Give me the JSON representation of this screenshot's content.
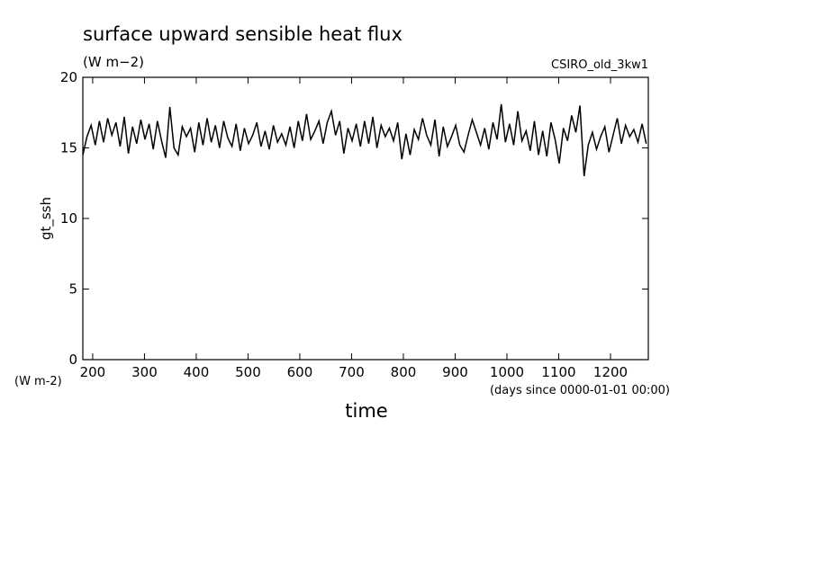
{
  "chart_data": {
    "type": "line",
    "title": "surface upward sensible heat flux",
    "subtitle": "(W m−2)",
    "annotation": "CSIRO_old_3kw1",
    "y_label": "gt_ssh",
    "y_units": "(W m-2)",
    "x_label": "time",
    "x_units": "(days since 0000-01-01 00:00)",
    "xlim": [
      181,
      1273
    ],
    "ylim": [
      0,
      20
    ],
    "xticks": [
      200,
      300,
      400,
      500,
      600,
      700,
      800,
      900,
      1000,
      1100,
      1200
    ],
    "yticks": [
      0,
      5,
      10,
      15,
      20
    ],
    "color": "#000000",
    "x": [
      181,
      189,
      197,
      205,
      213,
      221,
      229,
      237,
      245,
      253,
      261,
      269,
      277,
      285,
      293,
      301,
      309,
      317,
      325,
      333,
      341,
      349,
      357,
      365,
      373,
      381,
      389,
      397,
      405,
      413,
      421,
      429,
      437,
      445,
      453,
      461,
      469,
      477,
      485,
      493,
      501,
      509,
      517,
      525,
      533,
      541,
      549,
      557,
      565,
      573,
      581,
      589,
      597,
      605,
      613,
      621,
      629,
      637,
      645,
      653,
      661,
      669,
      677,
      685,
      693,
      701,
      709,
      717,
      725,
      733,
      741,
      749,
      757,
      765,
      773,
      781,
      789,
      797,
      805,
      813,
      821,
      829,
      837,
      845,
      853,
      861,
      869,
      877,
      885,
      893,
      901,
      909,
      917,
      925,
      933,
      941,
      949,
      957,
      965,
      973,
      981,
      989,
      997,
      1005,
      1013,
      1021,
      1029,
      1037,
      1045,
      1053,
      1061,
      1069,
      1077,
      1085,
      1093,
      1101,
      1109,
      1117,
      1125,
      1133,
      1141,
      1149,
      1157,
      1165,
      1173,
      1181,
      1189,
      1197,
      1205,
      1213,
      1221,
      1229,
      1237,
      1245,
      1253,
      1261,
      1269
    ],
    "values": [
      14.5,
      15.8,
      16.6,
      15.2,
      16.9,
      15.4,
      17.1,
      15.9,
      16.8,
      15.1,
      17.2,
      14.6,
      16.5,
      15.3,
      17.0,
      15.6,
      16.7,
      14.9,
      16.9,
      15.5,
      14.3,
      17.9,
      15.0,
      14.5,
      16.5,
      15.8,
      16.4,
      14.7,
      16.8,
      15.2,
      17.1,
      15.4,
      16.6,
      15.0,
      16.9,
      15.7,
      15.1,
      16.7,
      14.8,
      16.4,
      15.3,
      15.9,
      16.8,
      15.1,
      16.2,
      14.9,
      16.6,
      15.4,
      16.0,
      15.2,
      16.5,
      15.0,
      16.9,
      15.5,
      17.4,
      15.6,
      16.2,
      16.9,
      15.3,
      16.8,
      17.6,
      15.9,
      16.9,
      14.6,
      16.4,
      15.5,
      16.7,
      15.1,
      16.9,
      15.3,
      17.2,
      15.0,
      16.6,
      15.8,
      16.4,
      15.5,
      16.8,
      14.2,
      16.0,
      14.5,
      16.3,
      15.6,
      17.1,
      15.9,
      15.2,
      17.0,
      14.4,
      16.5,
      15.1,
      15.8,
      16.6,
      15.2,
      14.7,
      15.9,
      17.0,
      16.1,
      15.2,
      16.4,
      14.9,
      16.8,
      15.6,
      18.1,
      15.4,
      16.7,
      15.2,
      17.6,
      15.5,
      16.2,
      14.8,
      16.9,
      14.5,
      16.2,
      14.4,
      16.8,
      15.6,
      13.9,
      16.4,
      15.5,
      17.3,
      16.1,
      18.0,
      13.0,
      15.2,
      16.1,
      14.9,
      15.8,
      16.5,
      14.7,
      15.9,
      17.1,
      15.3,
      16.6,
      15.8,
      16.3,
      15.4,
      16.7,
      15.3
    ]
  }
}
